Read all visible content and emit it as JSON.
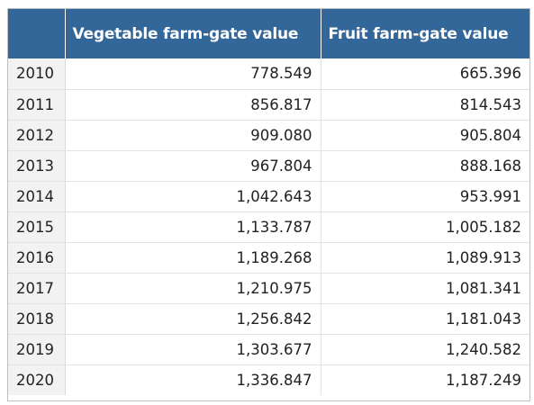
{
  "chart_data": {
    "type": "table",
    "columns": [
      "",
      "Vegetable farm-gate value",
      "Fruit farm-gate value"
    ],
    "rows": [
      {
        "year": "2010",
        "vegetable": "778.549",
        "fruit": "665.396"
      },
      {
        "year": "2011",
        "vegetable": "856.817",
        "fruit": "814.543"
      },
      {
        "year": "2012",
        "vegetable": "909.080",
        "fruit": "905.804"
      },
      {
        "year": "2013",
        "vegetable": "967.804",
        "fruit": "888.168"
      },
      {
        "year": "2014",
        "vegetable": "1,042.643",
        "fruit": "953.991"
      },
      {
        "year": "2015",
        "vegetable": "1,133.787",
        "fruit": "1,005.182"
      },
      {
        "year": "2016",
        "vegetable": "1,189.268",
        "fruit": "1,089.913"
      },
      {
        "year": "2017",
        "vegetable": "1,210.975",
        "fruit": "1,081.341"
      },
      {
        "year": "2018",
        "vegetable": "1,256.842",
        "fruit": "1,181.043"
      },
      {
        "year": "2019",
        "vegetable": "1,303.677",
        "fruit": "1,240.582"
      },
      {
        "year": "2020",
        "vegetable": "1,336.847",
        "fruit": "1,187.249"
      }
    ],
    "colors": {
      "header_bg": "#336699",
      "header_text": "#ffffff",
      "year_bg": "#f2f2f2"
    }
  }
}
